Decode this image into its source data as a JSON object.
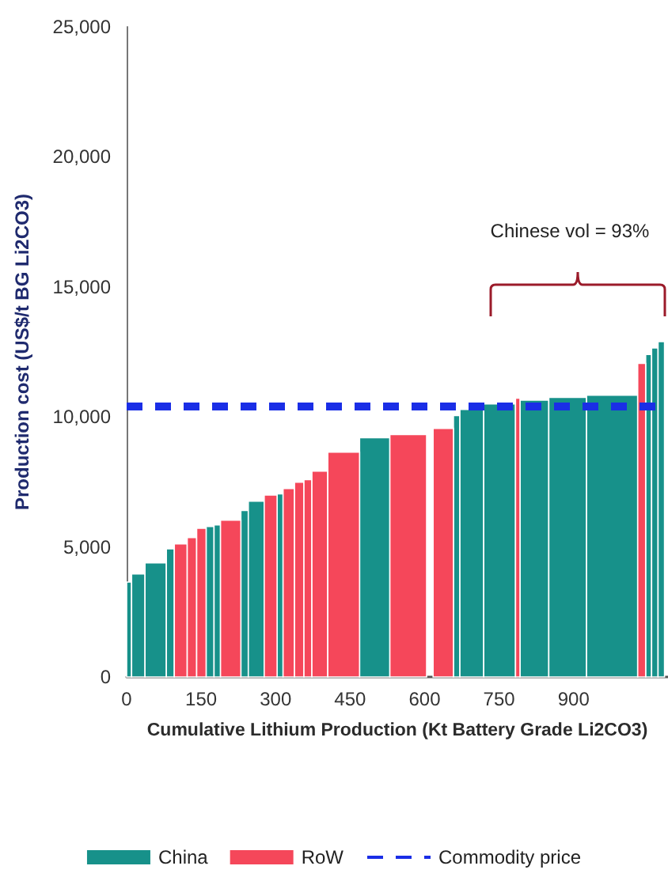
{
  "chart_data": {
    "type": "histogram",
    "xlabel": "Cumulative Lithium Production (Kt Battery Grade Li2CO3)",
    "ylabel": "Production cost (US$/t BG Li2CO3)",
    "bins": [
      0,
      10,
      37,
      80,
      96,
      122,
      141,
      160,
      176,
      189,
      230,
      245,
      277,
      303,
      315,
      338,
      357,
      373,
      405,
      469,
      530,
      604,
      617,
      658,
      671,
      719,
      783,
      792,
      850,
      926,
      1029,
      1045,
      1057,
      1070,
      1083
    ],
    "series": [
      {
        "name": "China",
        "color": "#17918a",
        "values": [
          3650,
          3960,
          4390,
          4930,
          null,
          null,
          null,
          5790,
          5850,
          null,
          6400,
          6760,
          null,
          7040,
          null,
          null,
          null,
          null,
          null,
          9200,
          null,
          null,
          null,
          10050,
          10290,
          10500,
          null,
          10650,
          10750,
          10840,
          null,
          12400,
          12650,
          12900
        ]
      },
      {
        "name": "RoW",
        "color": "#f5475a",
        "values": [
          null,
          null,
          null,
          null,
          5120,
          5360,
          5720,
          null,
          null,
          6030,
          null,
          null,
          7000,
          null,
          7250,
          7490,
          7590,
          7920,
          8650,
          null,
          9320,
          null,
          9560,
          null,
          null,
          null,
          10720,
          null,
          null,
          null,
          12060,
          null,
          null,
          null
        ]
      },
      {
        "name": "Commodity price",
        "type": "line",
        "color": "#1a2ee6",
        "x": [
          0,
          1090
        ],
        "values": [
          10400,
          10400
        ],
        "line_style": "dashed",
        "marker": "none"
      }
    ],
    "xlim": [
      0,
      1090
    ],
    "xticks": [
      0,
      150,
      300,
      450,
      600,
      750,
      900
    ],
    "ylim": [
      0,
      25000
    ],
    "yticks": [
      {
        "value": 0,
        "label": "0"
      },
      {
        "value": 5000,
        "label": "5,000"
      },
      {
        "value": 10000,
        "label": "10,000"
      },
      {
        "value": 15000,
        "label": "15,000"
      },
      {
        "value": 20000,
        "label": "20,000"
      },
      {
        "value": 25000,
        "label": "25,000"
      }
    ],
    "annotations": [
      "Chinese vol = 93%"
    ],
    "grid": false,
    "legend": "bottom"
  }
}
